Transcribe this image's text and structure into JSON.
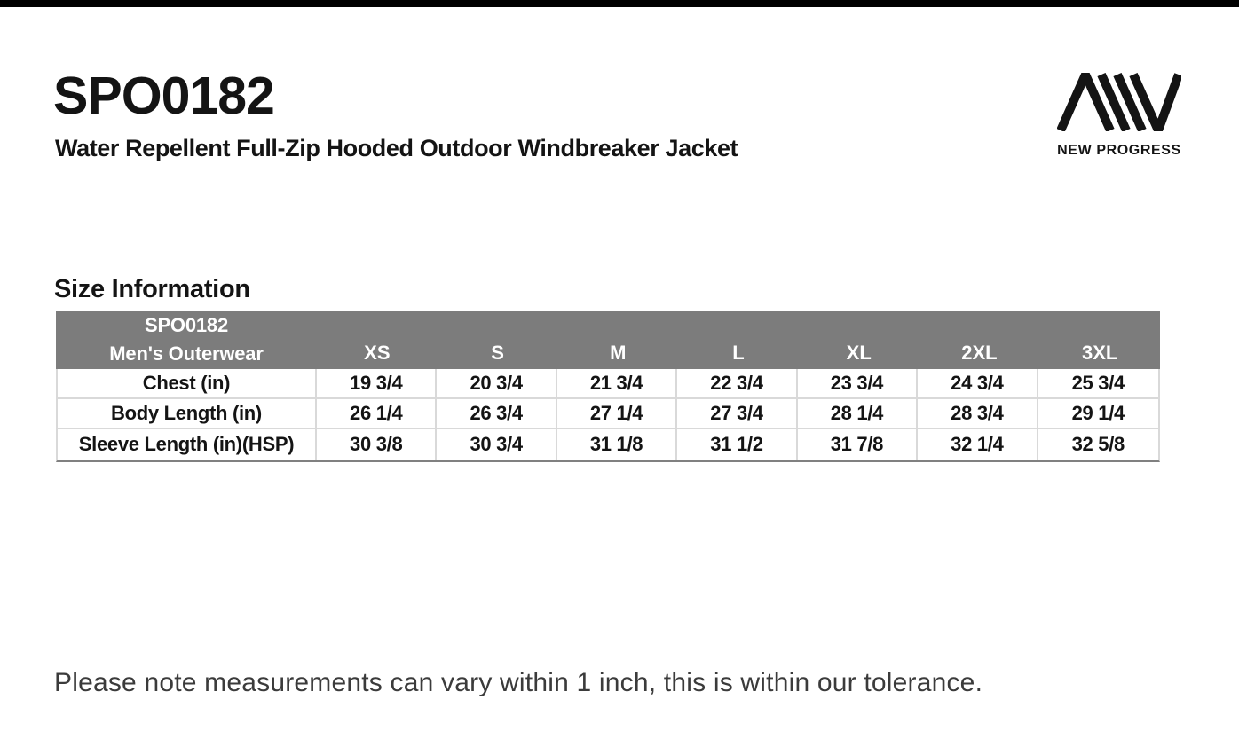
{
  "page": {
    "top_bar_color": "#000000",
    "background_color": "#FFFFFF"
  },
  "header": {
    "product_code": "SPO0182",
    "product_name": "Water Repellent Full-Zip Hooded Outdoor Windbreaker Jacket",
    "brand": {
      "logo_icon": "new-progress-monogram",
      "name": "NEW PROGRESS"
    }
  },
  "size_section": {
    "title": "Size Information",
    "table": {
      "header_cell": {
        "line1": "SPO0182",
        "line2": "Men's Outerwear"
      },
      "size_columns": [
        "XS",
        "S",
        "M",
        "L",
        "XL",
        "2XL",
        "3XL"
      ],
      "rows": [
        {
          "label": "Chest (in)",
          "values": [
            "19 3/4",
            "20 3/4",
            "21 3/4",
            "22 3/4",
            "23 3/4",
            "24 3/4",
            "25 3/4"
          ]
        },
        {
          "label": "Body Length (in)",
          "values": [
            "26 1/4",
            "26 3/4",
            "27 1/4",
            "27 3/4",
            "28 1/4",
            "28 3/4",
            "29 1/4"
          ]
        },
        {
          "label": "Sleeve Length (in)(HSP)",
          "values": [
            "30 3/8",
            "30 3/4",
            "31 1/8",
            "31 1/2",
            "31 7/8",
            "32 1/4",
            "32 5/8"
          ]
        }
      ],
      "colors": {
        "header_bg": "#7C7C7C",
        "header_text": "#FFFFFF",
        "cell_border": "#D9D9D9",
        "bottom_border": "#808080"
      }
    }
  },
  "footnote": "Please note measurements can vary within 1 inch, this is within our tolerance."
}
